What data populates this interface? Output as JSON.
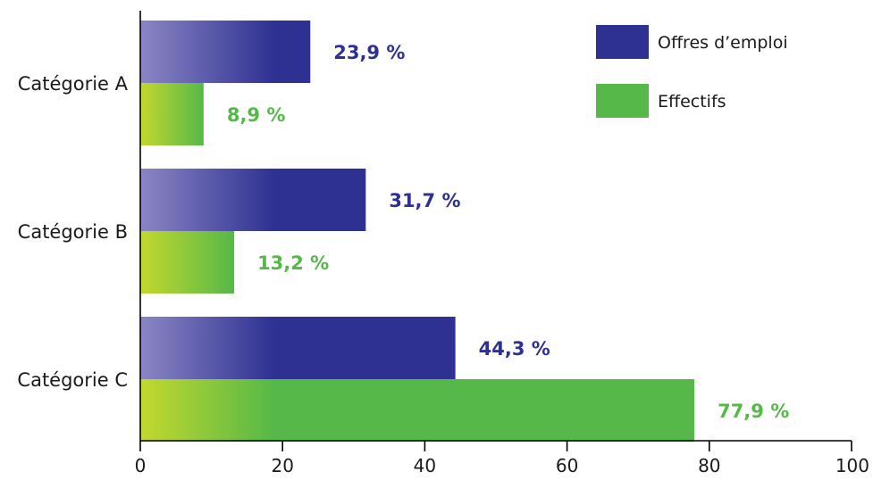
{
  "chart_data": {
    "type": "bar",
    "orientation": "horizontal",
    "categories": [
      "Catégorie A",
      "Catégorie B",
      "Catégorie C"
    ],
    "series": [
      {
        "name": "Offres d’emploi",
        "values": [
          23.9,
          31.7,
          44.3
        ],
        "labels": [
          "23,9 %",
          "31,7 %",
          "44,3 %"
        ],
        "color": "#2e3192",
        "color_light": "#8b86c4",
        "label_color": "#2e3192"
      },
      {
        "name": "Effectifs",
        "values": [
          8.9,
          13.2,
          77.9
        ],
        "labels": [
          "8,9 %",
          "13,2 %",
          "77,9 %"
        ],
        "color": "#56b848",
        "color_light": "#c3d82e",
        "label_color": "#56b848"
      }
    ],
    "xlim": [
      0,
      100
    ],
    "x_ticks": [
      0,
      20,
      40,
      60,
      80,
      100
    ],
    "x_tick_labels": [
      "0",
      "20",
      "40",
      "60",
      "80",
      "100"
    ],
    "grid": false,
    "legend_position": "top-right"
  }
}
